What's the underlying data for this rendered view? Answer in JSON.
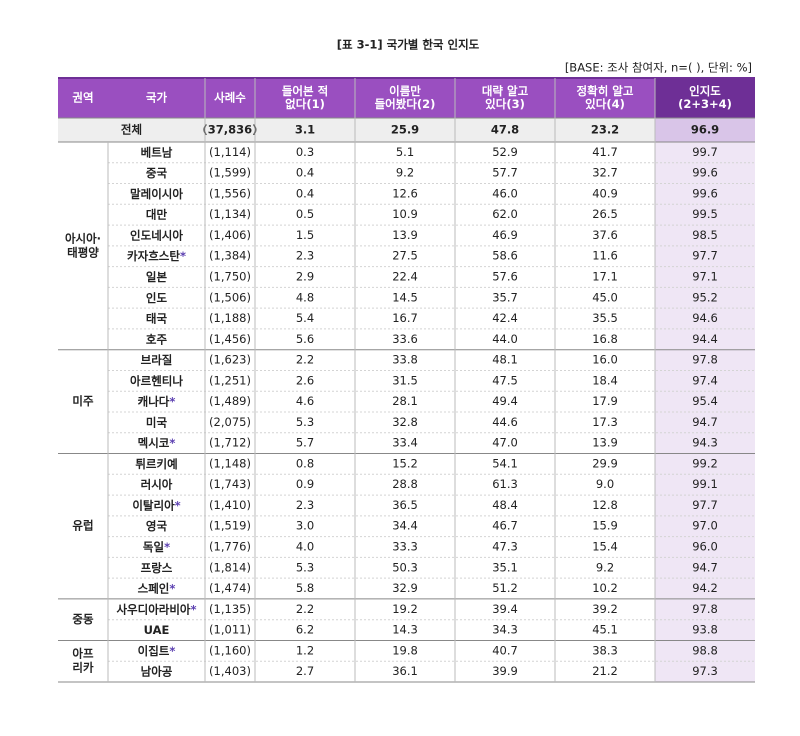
{
  "title": "[표 3-1] 국가별 한국 인지도",
  "note": "[BASE: 조사 참여자, n=( ), 단위: %]",
  "table": {
    "header": [
      [
        "권역"
      ],
      [
        "국가"
      ],
      [
        "사례수"
      ],
      [
        "들어본 적",
        "없다(1)"
      ],
      [
        "이름만",
        "들어봤다(2)"
      ],
      [
        "대략 알고",
        "있다(3)"
      ],
      [
        "정확히 알고",
        "있다(4)"
      ],
      [
        "인지도",
        "(2+3+4)"
      ]
    ],
    "total": {
      "label": "전체",
      "n": "(37,836)",
      "values": [
        "3.1",
        "25.9",
        "47.8",
        "23.2",
        "96.9"
      ]
    },
    "groups": [
      {
        "region": [
          "아시아·",
          "태평양"
        ],
        "rows": [
          {
            "country": "베트남",
            "n": "(1,114)",
            "values": [
              "0.3",
              "5.1",
              "52.9",
              "41.7",
              "99.7"
            ]
          },
          {
            "country": "중국",
            "n": "(1,599)",
            "values": [
              "0.4",
              "9.2",
              "57.7",
              "32.7",
              "99.6"
            ]
          },
          {
            "country": "말레이시아",
            "n": "(1,556)",
            "values": [
              "0.4",
              "12.6",
              "46.0",
              "40.9",
              "99.6"
            ]
          },
          {
            "country": "대만",
            "n": "(1,134)",
            "values": [
              "0.5",
              "10.9",
              "62.0",
              "26.5",
              "99.5"
            ]
          },
          {
            "country": "인도네시아",
            "n": "(1,406)",
            "values": [
              "1.5",
              "13.9",
              "46.9",
              "37.6",
              "98.5"
            ]
          },
          {
            "country": "카자흐스탄",
            "note": "*",
            "n": "(1,384)",
            "values": [
              "2.3",
              "27.5",
              "58.6",
              "11.6",
              "97.7"
            ]
          },
          {
            "country": "일본",
            "n": "(1,750)",
            "values": [
              "2.9",
              "22.4",
              "57.6",
              "17.1",
              "97.1"
            ]
          },
          {
            "country": "인도",
            "n": "(1,506)",
            "values": [
              "4.8",
              "14.5",
              "35.7",
              "45.0",
              "95.2"
            ]
          },
          {
            "country": "태국",
            "n": "(1,188)",
            "values": [
              "5.4",
              "16.7",
              "42.4",
              "35.5",
              "94.6"
            ]
          },
          {
            "country": "호주",
            "n": "(1,456)",
            "values": [
              "5.6",
              "33.6",
              "44.0",
              "16.8",
              "94.4"
            ]
          }
        ]
      },
      {
        "region": [
          "미주"
        ],
        "rows": [
          {
            "country": "브라질",
            "n": "(1,623)",
            "values": [
              "2.2",
              "33.8",
              "48.1",
              "16.0",
              "97.8"
            ]
          },
          {
            "country": "아르헨티나",
            "n": "(1,251)",
            "values": [
              "2.6",
              "31.5",
              "47.5",
              "18.4",
              "97.4"
            ]
          },
          {
            "country": "캐나다",
            "note": "*",
            "n": "(1,489)",
            "values": [
              "4.6",
              "28.1",
              "49.4",
              "17.9",
              "95.4"
            ]
          },
          {
            "country": "미국",
            "n": "(2,075)",
            "values": [
              "5.3",
              "32.8",
              "44.6",
              "17.3",
              "94.7"
            ]
          },
          {
            "country": "멕시코",
            "note": "*",
            "n": "(1,712)",
            "values": [
              "5.7",
              "33.4",
              "47.0",
              "13.9",
              "94.3"
            ]
          }
        ]
      },
      {
        "region": [
          "유럽"
        ],
        "rows": [
          {
            "country": "튀르키예",
            "n": "(1,148)",
            "values": [
              "0.8",
              "15.2",
              "54.1",
              "29.9",
              "99.2"
            ]
          },
          {
            "country": "러시아",
            "n": "(1,743)",
            "values": [
              "0.9",
              "28.8",
              "61.3",
              "9.0",
              "99.1"
            ]
          },
          {
            "country": "이탈리아",
            "note": "*",
            "n": "(1,410)",
            "values": [
              "2.3",
              "36.5",
              "48.4",
              "12.8",
              "97.7"
            ]
          },
          {
            "country": "영국",
            "n": "(1,519)",
            "values": [
              "3.0",
              "34.4",
              "46.7",
              "15.9",
              "97.0"
            ]
          },
          {
            "country": "독일",
            "note": "*",
            "n": "(1,776)",
            "values": [
              "4.0",
              "33.3",
              "47.3",
              "15.4",
              "96.0"
            ]
          },
          {
            "country": "프랑스",
            "n": "(1,814)",
            "values": [
              "5.3",
              "50.3",
              "35.1",
              "9.2",
              "94.7"
            ]
          },
          {
            "country": "스페인",
            "note": "*",
            "n": "(1,474)",
            "values": [
              "5.8",
              "32.9",
              "51.2",
              "10.2",
              "94.2"
            ]
          }
        ]
      },
      {
        "region": [
          "중동"
        ],
        "rows": [
          {
            "country": "사우디아라비아",
            "note": "*",
            "n": "(1,135)",
            "values": [
              "2.2",
              "19.2",
              "39.4",
              "39.2",
              "97.8"
            ]
          },
          {
            "country": "UAE",
            "n": "(1,011)",
            "values": [
              "6.2",
              "14.3",
              "34.3",
              "45.1",
              "93.8"
            ]
          }
        ]
      },
      {
        "region": [
          "아프",
          "리카"
        ],
        "rows": [
          {
            "country": "이집트",
            "note": "*",
            "n": "(1,160)",
            "values": [
              "1.2",
              "19.8",
              "40.7",
              "38.3",
              "98.8"
            ]
          },
          {
            "country": "남아공",
            "n": "(1,403)",
            "values": [
              "2.7",
              "36.1",
              "39.9",
              "21.2",
              "97.3"
            ]
          }
        ]
      }
    ]
  }
}
